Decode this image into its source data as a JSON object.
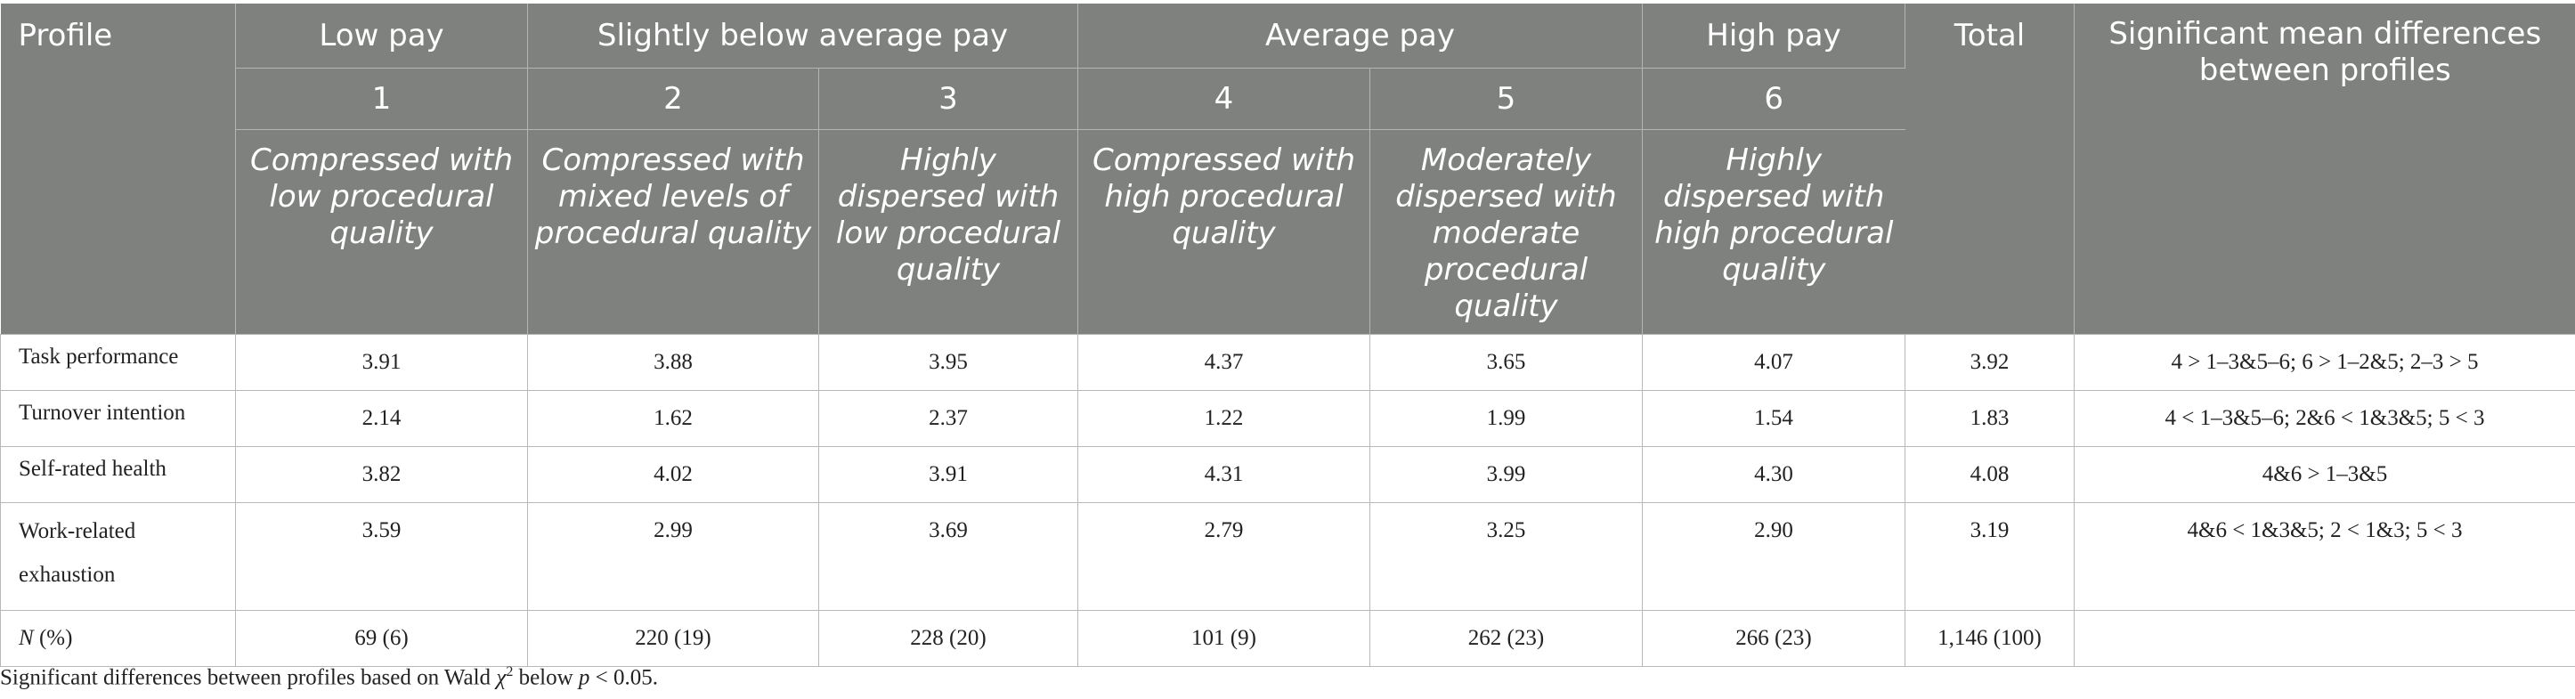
{
  "table": {
    "header": {
      "profile_label": "Profile",
      "total_label": "Total",
      "significance_label": "Significant mean differences between profiles",
      "groups": [
        "Low pay",
        "Slightly below average pay",
        "Average pay",
        "High pay"
      ],
      "profile_numbers": [
        "1",
        "2",
        "3",
        "4",
        "5",
        "6"
      ],
      "profile_names": [
        "Compressed with low procedural quality",
        "Compressed with mixed levels of procedural quality",
        "Highly dispersed with low procedural quality",
        "Compressed with high procedural quality",
        "Moderately dispersed with moderate procedural quality",
        "Highly dispersed with high procedural quality"
      ]
    },
    "rows": [
      {
        "label": "Task performance",
        "values": [
          "3.91",
          "3.88",
          "3.95",
          "4.37",
          "3.65",
          "4.07"
        ],
        "total": "3.92",
        "sig": "4 > 1–3&5–6; 6 > 1–2&5; 2–3 > 5"
      },
      {
        "label": "Turnover intention",
        "values": [
          "2.14",
          "1.62",
          "2.37",
          "1.22",
          "1.99",
          "1.54"
        ],
        "total": "1.83",
        "sig": "4 < 1–3&5–6; 2&6 < 1&3&5; 5 < 3"
      },
      {
        "label": "Self-rated health",
        "values": [
          "3.82",
          "4.02",
          "3.91",
          "4.31",
          "3.99",
          "4.30"
        ],
        "total": "4.08",
        "sig": "4&6 > 1–3&5"
      },
      {
        "label": "Work-related exhaustion",
        "values": [
          "3.59",
          "2.99",
          "3.69",
          "2.79",
          "3.25",
          "2.90"
        ],
        "total": "3.19",
        "sig": "4&6 < 1&3&5; 2 < 1&3; 5 < 3"
      },
      {
        "label_italic": "N",
        "label_rest": " (%)",
        "values": [
          "69 (6)",
          "220 (19)",
          "228 (20)",
          "101 (9)",
          "262 (23)",
          "266 (23)"
        ],
        "total": "1,146 (100)",
        "sig": ""
      }
    ]
  },
  "footnote": {
    "before": "Significant differences between profiles based on Wald ",
    "chi": "χ",
    "sup": "2",
    "middle": " below ",
    "p": "p",
    "after": " < 0.05."
  }
}
